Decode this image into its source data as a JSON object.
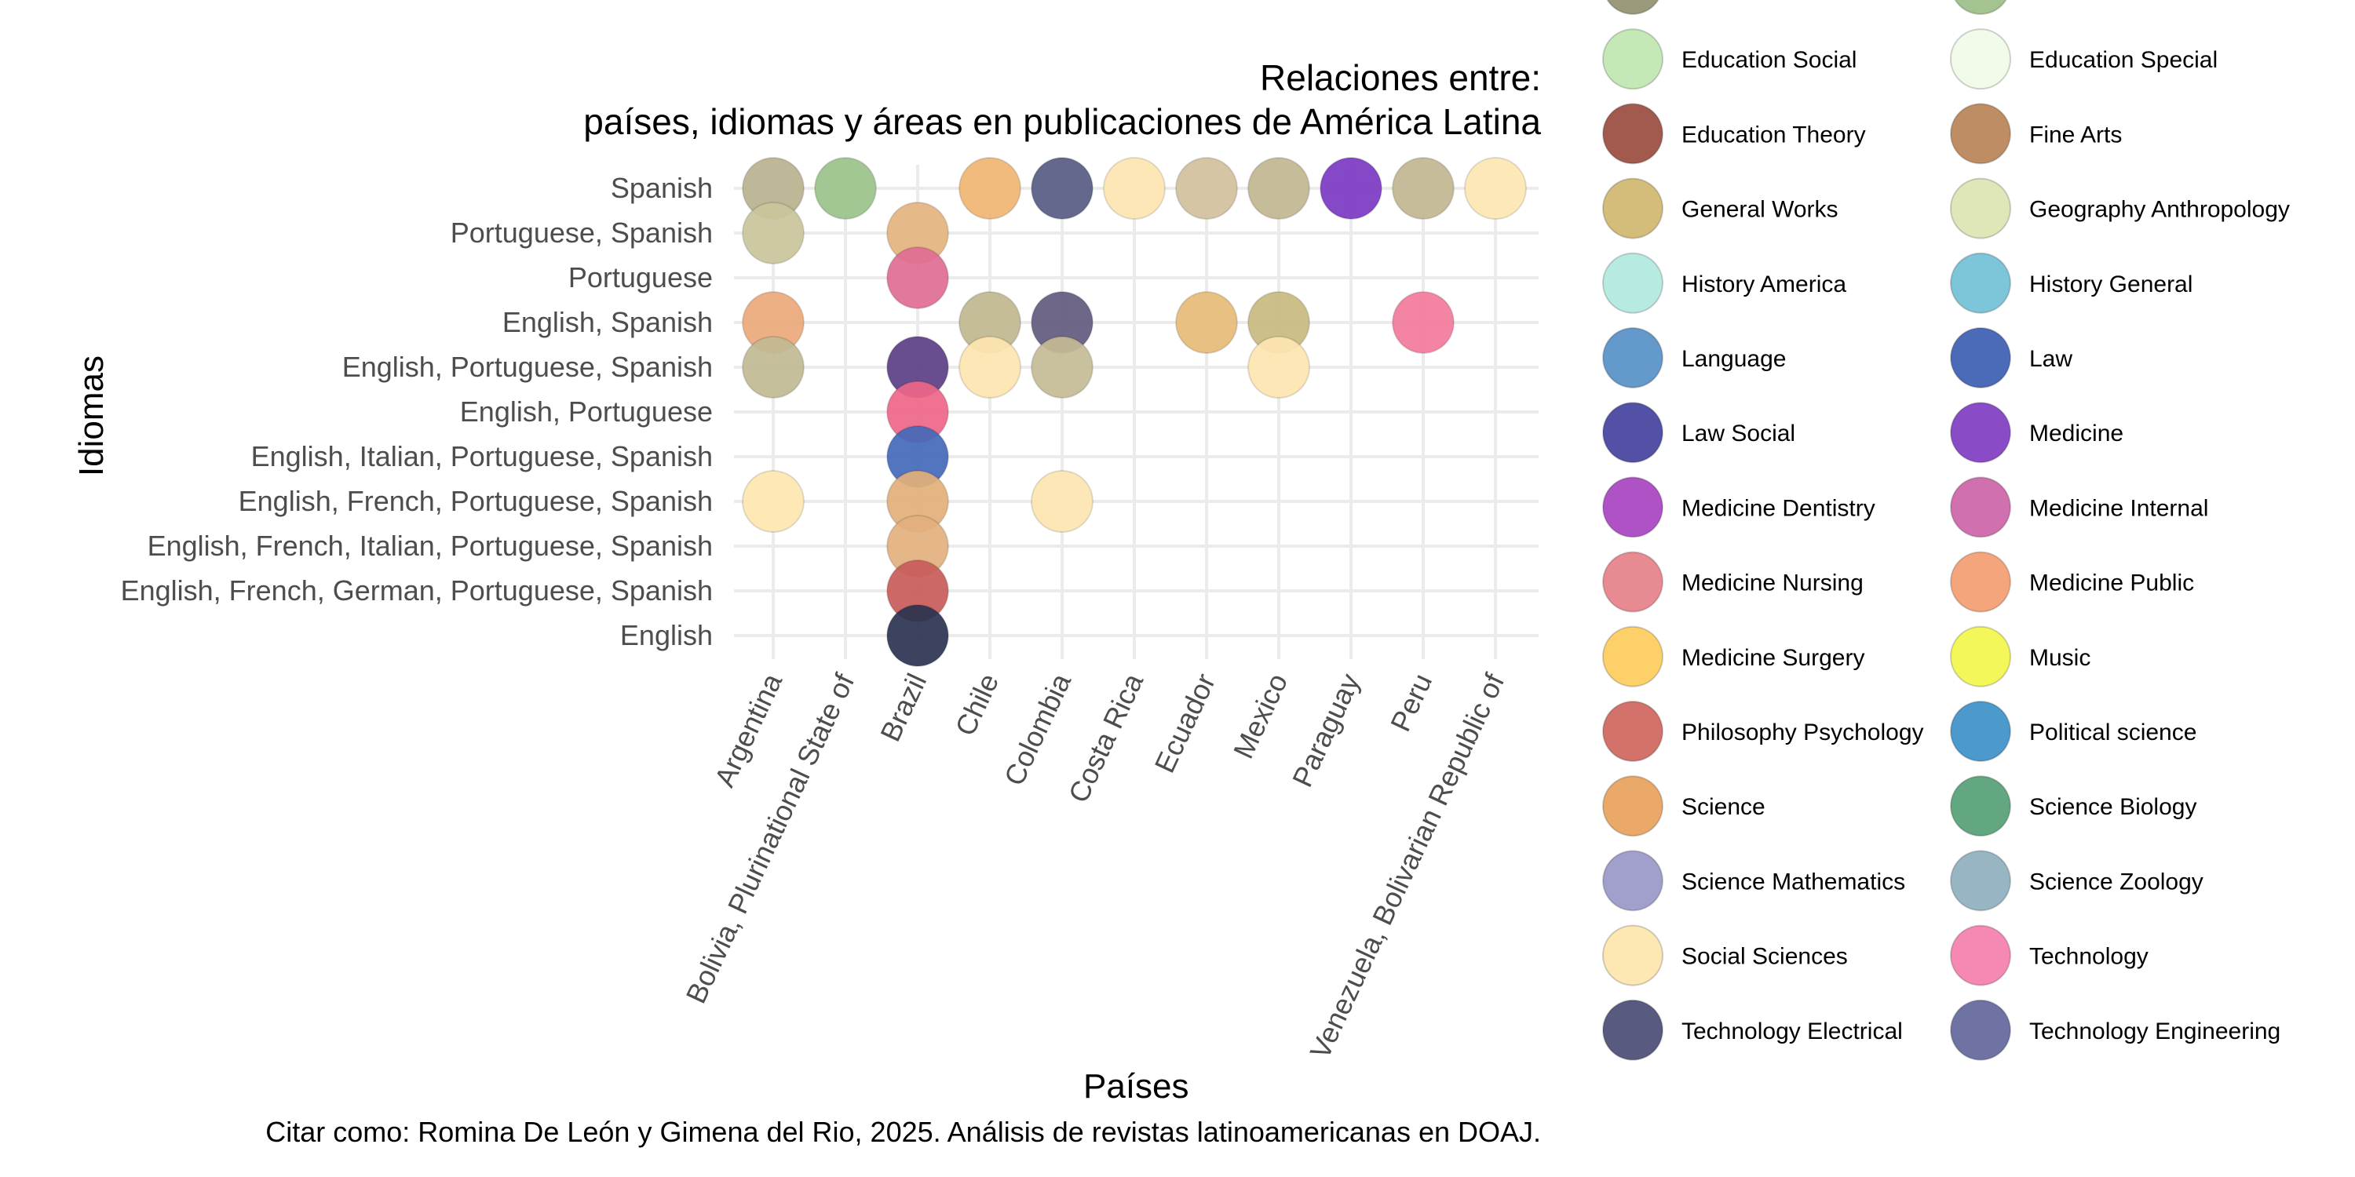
{
  "chart_data": {
    "type": "scatter",
    "title": "Relaciones entre:",
    "subtitle": "países, idiomas y áreas en publicaciones de América Latina",
    "xlabel": "Países",
    "ylabel": "Idiomas",
    "caption": "Citar como: Romina De León y Gimena del Rio, 2025. Análisis de revistas latinoamericanas en DOAJ.",
    "grid": true,
    "legend_position": "right",
    "x_categories": [
      "Argentina",
      "Bolivia, Plurinational State of",
      "Brazil",
      "Chile",
      "Colombia",
      "Costa Rica",
      "Ecuador",
      "Mexico",
      "Paraguay",
      "Peru",
      "Venezuela, Bolivarian Republic of"
    ],
    "y_categories": [
      "English",
      "English, French, German, Portuguese, Spanish",
      "English, French, Italian, Portuguese, Spanish",
      "English, French, Portuguese, Spanish",
      "English, Italian, Portuguese, Spanish",
      "English, Portuguese",
      "English, Portuguese, Spanish",
      "English, Spanish",
      "Portuguese",
      "Portuguese, Spanish",
      "Spanish"
    ],
    "legend": [
      {
        "name": "",
        "color": "#9a9a7a"
      },
      {
        "name": "",
        "color": "#a3c490"
      },
      {
        "name": "Education Social",
        "color": "#c5e8b7"
      },
      {
        "name": "Education Special",
        "color": "#f2fbe9"
      },
      {
        "name": "Education Theory",
        "color": "#a35a4e"
      },
      {
        "name": "Fine Arts",
        "color": "#bf8d63"
      },
      {
        "name": "General Works",
        "color": "#d4bd7a"
      },
      {
        "name": "Geography Anthropology",
        "color": "#dfe6b7"
      },
      {
        "name": "History America",
        "color": "#b7ebe1"
      },
      {
        "name": "History General",
        "color": "#7dc5d8"
      },
      {
        "name": "Language",
        "color": "#6499cc"
      },
      {
        "name": "Law",
        "color": "#4b6ab8"
      },
      {
        "name": "Law Social",
        "color": "#5251a6"
      },
      {
        "name": "Medicine",
        "color": "#8a4bc6"
      },
      {
        "name": "Medicine Dentistry",
        "color": "#ae52c6"
      },
      {
        "name": "Medicine Internal",
        "color": "#d070ae"
      },
      {
        "name": "Medicine Nursing",
        "color": "#e88a92"
      },
      {
        "name": "Medicine Public",
        "color": "#f5a57c"
      },
      {
        "name": "Medicine Surgery",
        "color": "#fdd06a"
      },
      {
        "name": "Music",
        "color": "#f3f75a"
      },
      {
        "name": "Philosophy Psychology",
        "color": "#d2726a"
      },
      {
        "name": "Political science",
        "color": "#4b9acb"
      },
      {
        "name": "Science",
        "color": "#eaa869"
      },
      {
        "name": "Science Biology",
        "color": "#62a77f"
      },
      {
        "name": "Science Mathematics",
        "color": "#a19fcb"
      },
      {
        "name": "Science Zoology",
        "color": "#98b5c4"
      },
      {
        "name": "Social Sciences",
        "color": "#fde7b2"
      },
      {
        "name": "Technology",
        "color": "#f589b4"
      },
      {
        "name": "Technology Electrical",
        "color": "#585a80"
      },
      {
        "name": "Technology Engineering",
        "color": "#6e73a4"
      }
    ],
    "points": [
      {
        "x": "Argentina",
        "y": "Spanish",
        "color": "#b9b28f"
      },
      {
        "x": "Argentina",
        "y": "Portuguese, Spanish",
        "color": "#c9c59b"
      },
      {
        "x": "Argentina",
        "y": "English, Spanish",
        "color": "#eba87a"
      },
      {
        "x": "Argentina",
        "y": "English, Portuguese, Spanish",
        "color": "#c0ba93"
      },
      {
        "x": "Argentina",
        "y": "English, French, Portuguese, Spanish",
        "color": "#fde6b0"
      },
      {
        "x": "Bolivia, Plurinational State of",
        "y": "Spanish",
        "color": "#9ac28a"
      },
      {
        "x": "Brazil",
        "y": "Portuguese, Spanish",
        "color": "#e4b47e"
      },
      {
        "x": "Brazil",
        "y": "Portuguese",
        "color": "#e06c93"
      },
      {
        "x": "Brazil",
        "y": "English, Portuguese, Spanish",
        "color": "#5c3f85"
      },
      {
        "x": "Brazil",
        "y": "English, Portuguese",
        "color": "#ee6689"
      },
      {
        "x": "Brazil",
        "y": "English, Italian, Portuguese, Spanish",
        "color": "#4468b8"
      },
      {
        "x": "Brazil",
        "y": "English, French, Portuguese, Spanish",
        "color": "#e2b07a"
      },
      {
        "x": "Brazil",
        "y": "English, French, Italian, Portuguese, Spanish",
        "color": "#e2b07e"
      },
      {
        "x": "Brazil",
        "y": "English, French, German, Portuguese, Spanish",
        "color": "#c85c5a"
      },
      {
        "x": "Brazil",
        "y": "English",
        "color": "#2a3350"
      },
      {
        "x": "Chile",
        "y": "Spanish",
        "color": "#efb572"
      },
      {
        "x": "Chile",
        "y": "English, Spanish",
        "color": "#c0b78f"
      },
      {
        "x": "Chile",
        "y": "English, Portuguese, Spanish",
        "color": "#fde5b0"
      },
      {
        "x": "Colombia",
        "y": "Spanish",
        "color": "#565b82"
      },
      {
        "x": "Colombia",
        "y": "English, Spanish",
        "color": "#625a7e"
      },
      {
        "x": "Colombia",
        "y": "English, Portuguese, Spanish",
        "color": "#c4bb95"
      },
      {
        "x": "Colombia",
        "y": "English, French, Portuguese, Spanish",
        "color": "#fde5b0"
      },
      {
        "x": "Costa Rica",
        "y": "Spanish",
        "color": "#fde5b0"
      },
      {
        "x": "Ecuador",
        "y": "Spanish",
        "color": "#d3c09c"
      },
      {
        "x": "Ecuador",
        "y": "English, Spanish",
        "color": "#e6bb76"
      },
      {
        "x": "Mexico",
        "y": "Spanish",
        "color": "#c2b690"
      },
      {
        "x": "Mexico",
        "y": "English, Spanish",
        "color": "#c8ba80"
      },
      {
        "x": "Mexico",
        "y": "English, Portuguese, Spanish",
        "color": "#fde5b0"
      },
      {
        "x": "Paraguay",
        "y": "Spanish",
        "color": "#7b39c2"
      },
      {
        "x": "Peru",
        "y": "Spanish",
        "color": "#c2b690"
      },
      {
        "x": "Peru",
        "y": "English, Spanish",
        "color": "#f27a9c"
      },
      {
        "x": "Venezuela, Bolivarian Republic of",
        "y": "Spanish",
        "color": "#fde7b2"
      }
    ]
  }
}
